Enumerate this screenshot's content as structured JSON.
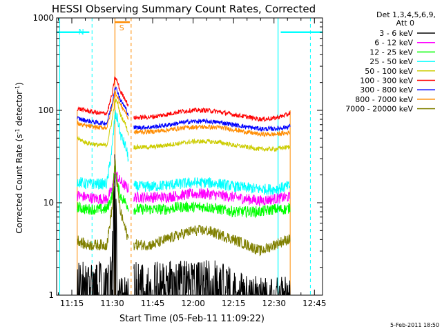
{
  "chart_data": {
    "type": "line",
    "title": "HESSI Observing Summary Count Rates, Corrected",
    "xlabel": "Start Time (05-Feb-11 11:09:22)",
    "ylabel": "Corrected Count Rate (s",
    "ylabel_sup1": "-1",
    "ylabel_mid": " detector",
    "ylabel_sup2": "-1",
    "ylabel_end": ")",
    "y_scale": "log",
    "ylim": [
      1,
      1000
    ],
    "xlim": [
      "11:09:22",
      "12:48:00"
    ],
    "x_ticks": [
      "11:15",
      "11:30",
      "11:45",
      "12:00",
      "12:15",
      "12:30",
      "12:45"
    ],
    "y_ticks": [
      "1",
      "10",
      "100",
      "1000"
    ],
    "legend_header": [
      "Det 1,3,4,5,6,9,",
      "Att 0"
    ],
    "legend_position": "right",
    "timestamp": "5-Feb-2011 18:50",
    "annotations": [
      {
        "text": "N",
        "color": "#00ffff"
      },
      {
        "text": "S",
        "color": "#ff8c00"
      }
    ],
    "night_markers": {
      "color": "#00ffff",
      "solid_at": [
        "11:10:30",
        "12:31:30"
      ],
      "dashed_at": [
        "11:22:30",
        "12:43:30"
      ],
      "bar_ranges": [
        [
          "11:09:22",
          "11:21:30"
        ],
        [
          "12:32:30",
          "12:48:00"
        ]
      ],
      "bar_level": 700
    },
    "saa_markers": {
      "color": "#ff8c00",
      "solid_at": [
        "11:31:00"
      ],
      "dashed_at": [
        "11:37:00"
      ],
      "bar_range": [
        "11:31:00",
        "11:36:30"
      ],
      "bar_level": 900
    },
    "data_gaps": [
      [
        "11:09:22",
        "11:17:00"
      ],
      [
        "11:36:30",
        "11:38:30"
      ],
      [
        "12:36:30",
        "12:48:00"
      ]
    ],
    "x_times": [
      "11:17",
      "11:20",
      "11:25",
      "11:28",
      "11:30",
      "11:31",
      "11:32",
      "11:33",
      "11:35",
      "11:36",
      "11:38",
      "11:45",
      "11:50",
      "11:55",
      "12:00",
      "12:05",
      "12:10",
      "12:15",
      "12:20",
      "12:25",
      "12:30",
      "12:35",
      "12:36"
    ],
    "series": [
      {
        "name": "3 - 6 keV",
        "color": "#000000",
        "values": [
          1.5,
          1.5,
          1.5,
          1.5,
          3,
          25,
          1.5,
          1,
          1,
          1,
          1.5,
          1.5,
          1.5,
          1.5,
          1.5,
          1.5,
          1.5,
          1.2,
          1.1,
          1,
          1,
          1,
          1
        ]
      },
      {
        "name": "6 - 12 keV",
        "color": "#ff00ff",
        "values": [
          12,
          11.5,
          11,
          11,
          14,
          22,
          19,
          17,
          15,
          14,
          11.5,
          11.5,
          11.5,
          12,
          12.5,
          12.5,
          12,
          11.5,
          11,
          10.5,
          11,
          11.5,
          11.5
        ]
      },
      {
        "name": "12 - 25 keV",
        "color": "#00ff00",
        "values": [
          9,
          8.5,
          8.5,
          8.5,
          12,
          25,
          15,
          12,
          10,
          9,
          8.5,
          8.5,
          8.5,
          9,
          9,
          9,
          8.5,
          8,
          8,
          8,
          8.5,
          8.5,
          9
        ]
      },
      {
        "name": "25 - 50 keV",
        "color": "#00ffff",
        "values": [
          17,
          16,
          16,
          16,
          40,
          90,
          80,
          55,
          40,
          30,
          15,
          15,
          15.5,
          16,
          16.5,
          16.5,
          16,
          15,
          14.5,
          14,
          14,
          15,
          15
        ]
      },
      {
        "name": "50 - 100 keV",
        "color": "#cccc00",
        "values": [
          50,
          45,
          42,
          42,
          80,
          130,
          120,
          90,
          70,
          55,
          40,
          40,
          42,
          44,
          46,
          46,
          45,
          42,
          40,
          38,
          38,
          40,
          40
        ]
      },
      {
        "name": "100 - 300 keV",
        "color": "#ff0000",
        "values": [
          105,
          100,
          93,
          93,
          150,
          230,
          200,
          160,
          130,
          110,
          83,
          85,
          90,
          97,
          100,
          100,
          96,
          90,
          85,
          80,
          82,
          90,
          95
        ]
      },
      {
        "name": "300 - 800 keV",
        "color": "#0000ff",
        "values": [
          82,
          78,
          73,
          73,
          120,
          180,
          160,
          130,
          105,
          90,
          65,
          66,
          69,
          73,
          76,
          76,
          74,
          70,
          66,
          63,
          63,
          66,
          68
        ]
      },
      {
        "name": "800 - 7000 keV",
        "color": "#ff8c00",
        "values": [
          72,
          68,
          65,
          65,
          110,
          160,
          140,
          115,
          95,
          80,
          58,
          59,
          61,
          64,
          66,
          66,
          65,
          62,
          58,
          55,
          55,
          57,
          58
        ]
      },
      {
        "name": "7000 - 20000 keV",
        "color": "#808000",
        "values": [
          4,
          3.5,
          3.5,
          3.5,
          9,
          28,
          14,
          8,
          5,
          4,
          3.5,
          3.5,
          4,
          4.5,
          5,
          5,
          4.5,
          4,
          3.5,
          3,
          3.5,
          4,
          4
        ]
      }
    ]
  }
}
